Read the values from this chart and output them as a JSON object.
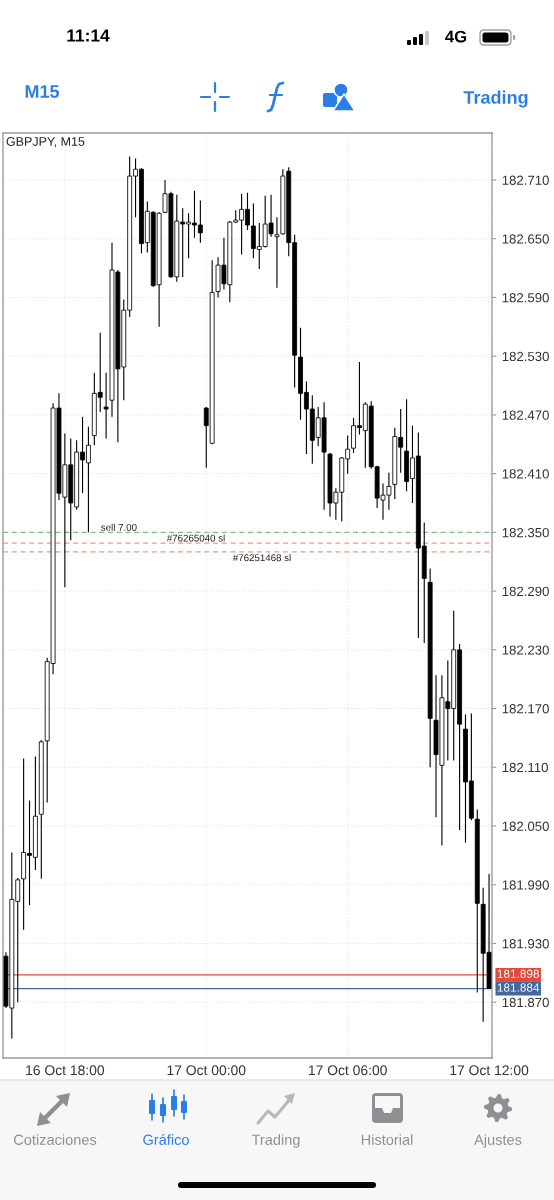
{
  "chart_data": {
    "type": "candlestick",
    "title": "GBPJPY, M15",
    "categories": [
      null,
      null,
      null,
      null,
      null,
      null,
      null,
      null,
      null,
      null,
      "16 Oct 18:00",
      null,
      null,
      null,
      null,
      null,
      null,
      null,
      null,
      null,
      null,
      null,
      null,
      null,
      null,
      null,
      null,
      null,
      null,
      null,
      null,
      null,
      null,
      null,
      "17 Oct 00:00",
      null,
      null,
      null,
      null,
      null,
      null,
      null,
      null,
      null,
      null,
      null,
      null,
      null,
      null,
      null,
      null,
      null,
      null,
      null,
      null,
      null,
      null,
      null,
      "17 Oct 06:00",
      null,
      null,
      null,
      null,
      null,
      null,
      null,
      null,
      null,
      null,
      null,
      null,
      null,
      null,
      null,
      null,
      null,
      null,
      null,
      null,
      null,
      null,
      null,
      "17 Oct 12:00"
    ],
    "ohlc": [
      [
        181.917,
        181.921,
        181.864,
        181.866
      ],
      [
        181.864,
        182.023,
        181.833,
        181.975
      ],
      [
        181.973,
        181.997,
        181.87,
        181.995
      ],
      [
        181.996,
        182.119,
        181.944,
        182.023
      ],
      [
        182.022,
        182.076,
        181.969,
        182.02
      ],
      [
        182.018,
        182.121,
        182.005,
        182.06
      ],
      [
        182.062,
        182.138,
        181.996,
        182.136
      ],
      [
        182.137,
        182.222,
        182.074,
        182.218
      ],
      [
        182.216,
        182.482,
        182.205,
        182.477
      ],
      [
        182.477,
        182.492,
        182.383,
        182.39
      ],
      [
        182.386,
        182.451,
        182.294,
        182.419
      ],
      [
        182.419,
        182.446,
        182.342,
        182.38
      ],
      [
        182.376,
        182.444,
        182.373,
        182.432
      ],
      [
        182.432,
        182.468,
        182.39,
        182.424
      ],
      [
        182.421,
        182.458,
        182.35,
        182.439
      ],
      [
        182.449,
        182.513,
        182.439,
        182.492
      ],
      [
        182.493,
        182.554,
        182.473,
        182.488
      ],
      [
        182.478,
        182.513,
        182.446,
        182.476
      ],
      [
        182.485,
        182.646,
        182.468,
        182.618
      ],
      [
        182.616,
        182.618,
        182.442,
        182.517
      ],
      [
        182.519,
        182.588,
        182.485,
        182.577
      ],
      [
        182.577,
        182.734,
        182.57,
        182.714
      ],
      [
        182.714,
        182.732,
        182.672,
        182.721
      ],
      [
        182.721,
        182.722,
        182.635,
        182.645
      ],
      [
        182.646,
        182.688,
        182.636,
        182.678
      ],
      [
        182.677,
        182.678,
        182.601,
        182.602
      ],
      [
        182.603,
        182.677,
        182.56,
        182.676
      ],
      [
        182.677,
        182.71,
        182.676,
        182.696
      ],
      [
        182.696,
        182.698,
        182.61,
        182.611
      ],
      [
        182.611,
        182.695,
        182.606,
        182.668
      ],
      [
        182.667,
        182.681,
        182.611,
        182.665
      ],
      [
        182.665,
        182.676,
        182.63,
        182.667
      ],
      [
        182.666,
        182.699,
        182.651,
        182.664
      ],
      [
        182.664,
        182.689,
        182.646,
        182.656
      ],
      [
        182.477,
        182.478,
        182.416,
        182.459
      ],
      [
        182.441,
        182.628,
        182.44,
        182.595
      ],
      [
        182.596,
        182.631,
        182.59,
        182.623
      ],
      [
        182.623,
        182.651,
        182.598,
        182.604
      ],
      [
        182.603,
        182.668,
        182.585,
        182.667
      ],
      [
        182.667,
        182.679,
        182.666,
        182.669
      ],
      [
        182.669,
        182.696,
        182.634,
        182.68
      ],
      [
        182.68,
        182.697,
        182.659,
        182.664
      ],
      [
        182.663,
        182.686,
        182.63,
        182.64
      ],
      [
        182.639,
        182.666,
        182.619,
        182.642
      ],
      [
        182.642,
        182.694,
        182.641,
        182.665
      ],
      [
        182.666,
        182.695,
        182.652,
        182.655
      ],
      [
        182.652,
        182.672,
        182.6,
        182.654
      ],
      [
        182.655,
        182.721,
        182.654,
        182.714
      ],
      [
        182.719,
        182.723,
        182.632,
        182.646
      ],
      [
        182.646,
        182.654,
        182.498,
        182.531
      ],
      [
        182.529,
        182.559,
        182.465,
        182.492
      ],
      [
        182.493,
        182.504,
        182.43,
        182.476
      ],
      [
        182.476,
        182.49,
        182.42,
        182.444
      ],
      [
        182.447,
        182.478,
        182.438,
        182.467
      ],
      [
        182.467,
        182.483,
        182.373,
        182.432
      ],
      [
        182.43,
        182.431,
        182.366,
        182.38
      ],
      [
        182.38,
        182.395,
        182.363,
        182.391
      ],
      [
        182.391,
        182.427,
        182.361,
        182.426
      ],
      [
        182.425,
        182.449,
        182.41,
        182.435
      ],
      [
        182.436,
        182.467,
        182.431,
        182.459
      ],
      [
        182.459,
        182.524,
        182.45,
        182.457
      ],
      [
        182.454,
        182.483,
        182.416,
        182.481
      ],
      [
        182.479,
        182.484,
        182.415,
        182.417
      ],
      [
        182.417,
        182.418,
        182.375,
        182.385
      ],
      [
        182.383,
        182.4,
        182.363,
        182.388
      ],
      [
        182.388,
        182.411,
        182.373,
        182.397
      ],
      [
        182.399,
        182.457,
        182.384,
        182.448
      ],
      [
        182.447,
        182.476,
        182.411,
        182.437
      ],
      [
        182.433,
        182.486,
        182.392,
        182.402
      ],
      [
        182.405,
        182.459,
        182.38,
        182.426
      ],
      [
        182.428,
        182.452,
        182.242,
        182.334
      ],
      [
        182.336,
        182.36,
        182.237,
        182.303
      ],
      [
        182.299,
        182.313,
        182.11,
        182.16
      ],
      [
        182.158,
        182.204,
        182.059,
        182.123
      ],
      [
        182.112,
        182.204,
        182.03,
        182.181
      ],
      [
        182.177,
        182.219,
        182.117,
        182.17
      ],
      [
        182.17,
        182.27,
        182.117,
        182.23
      ],
      [
        182.23,
        182.236,
        182.046,
        182.154
      ],
      [
        182.149,
        182.164,
        182.033,
        182.095
      ],
      [
        182.096,
        182.165,
        182.056,
        182.058
      ],
      [
        182.057,
        182.067,
        181.88,
        181.971
      ],
      [
        181.97,
        181.987,
        181.85,
        181.92
      ],
      [
        181.921,
        182.001,
        181.884,
        181.884
      ]
    ],
    "color": "#000000",
    "ylim": [
      181.813,
      182.758
    ],
    "yticks": [
      {
        "value": 181.87,
        "label": "181.870"
      },
      {
        "value": 181.93,
        "label": "181.930"
      },
      {
        "value": 181.99,
        "label": "181.990"
      },
      {
        "value": 182.05,
        "label": "182.050"
      },
      {
        "value": 182.11,
        "label": "182.110"
      },
      {
        "value": 182.17,
        "label": "182.170"
      },
      {
        "value": 182.23,
        "label": "182.230"
      },
      {
        "value": 182.29,
        "label": "182.290"
      },
      {
        "value": 182.35,
        "label": "182.350"
      },
      {
        "value": 182.41,
        "label": "182.410"
      },
      {
        "value": 182.47,
        "label": "182.470"
      },
      {
        "value": 182.53,
        "label": "182.530"
      },
      {
        "value": 182.59,
        "label": "182.590"
      },
      {
        "value": 182.65,
        "label": "182.650"
      },
      {
        "value": 182.71,
        "label": "182.710"
      }
    ],
    "grid": true,
    "ref_lines": [
      {
        "axis": "y",
        "value": 182.35,
        "label": "sell 7.00",
        "color": "#7cc47f",
        "line_style": "dashed"
      },
      {
        "axis": "y",
        "value": 182.339,
        "label": "#76265040 sl",
        "color": "#ef9a80",
        "line_style": "dashed"
      },
      {
        "axis": "y",
        "value": 182.33,
        "label": "#76251468 sl",
        "color": "#ef9a80",
        "line_style": "dashed"
      },
      {
        "axis": "y",
        "value": 181.898,
        "label": "181.898",
        "color": "#e5473a",
        "line_style": "solid"
      },
      {
        "axis": "y",
        "value": 181.884,
        "label": "181.884",
        "color": "#44689e",
        "line_style": "solid"
      }
    ],
    "annotations": [
      "11:14",
      "4G",
      "M15",
      "Trading",
      "Cotizaciones",
      "Gráfico",
      "Trading",
      "Historial",
      "Ajustes"
    ]
  }
}
